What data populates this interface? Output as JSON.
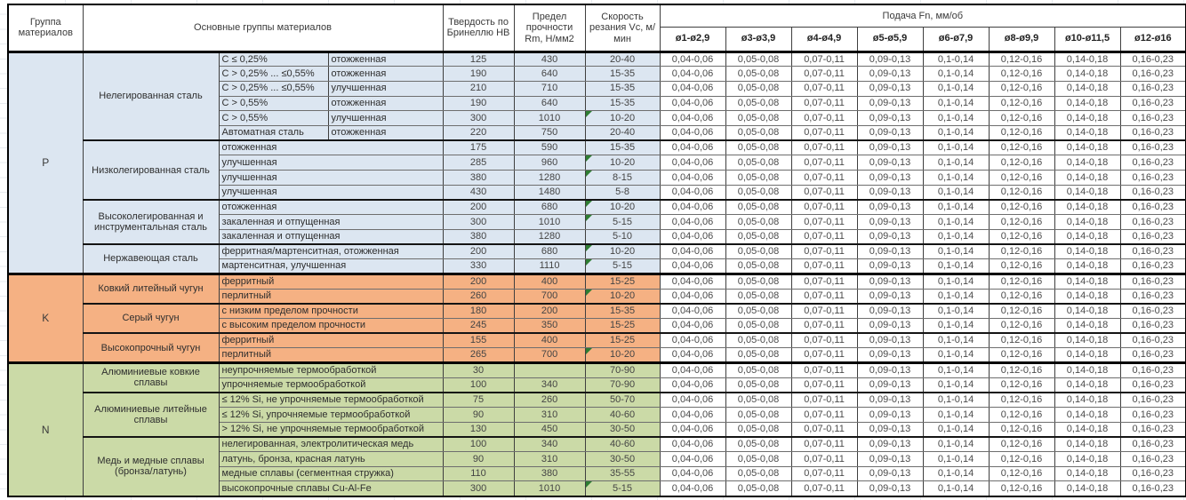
{
  "header": {
    "col_group": "Группа материалов",
    "col_main_groups": "Основные группы материалов",
    "col_hardness": "Твердость по Бринеллю HB",
    "col_strength": "Предел прочности Rm, Н/мм2",
    "col_speed": "Скорость резания Vc, м/мин",
    "feed_title": "Подача Fn, мм/об",
    "feed_columns": [
      "ø1-ø2,9",
      "ø3-ø3,9",
      "ø4-ø4,9",
      "ø5-ø5,9",
      "ø6-ø7,9",
      "ø8-ø9,9",
      "ø10-ø11,5",
      "ø12-ø16"
    ]
  },
  "feed_values": [
    "0,04-0,06",
    "0,05-0,08",
    "0,07-0,11",
    "0,09-0,13",
    "0,1-0,14",
    "0,12-0,16",
    "0,14-0,18",
    "0,16-0,23"
  ],
  "colors": {
    "group_p": "#dce6f1",
    "group_k": "#f5b183",
    "group_n": "#cbdaa7",
    "comment_marker": "#2e7d32"
  },
  "groups": [
    {
      "code": "P",
      "color_key": "group_p",
      "subgroups": [
        {
          "name": "Нелегированная сталь",
          "rows": [
            {
              "detail": "C ≤ 0,25%",
              "state": "отожженная",
              "hb": "125",
              "rm": "430",
              "vc": "20-40",
              "marker": false
            },
            {
              "detail": "C > 0,25% ... ≤0,55%",
              "state": "отожженная",
              "hb": "190",
              "rm": "640",
              "vc": "15-35",
              "marker": false
            },
            {
              "detail": "C > 0,25% ... ≤0,55%",
              "state": "улучшенная",
              "hb": "210",
              "rm": "710",
              "vc": "15-35",
              "marker": false
            },
            {
              "detail": "C > 0,55%",
              "state": "отожженная",
              "hb": "190",
              "rm": "640",
              "vc": "15-35",
              "marker": false
            },
            {
              "detail": "C > 0,55%",
              "state": "улучшенная",
              "hb": "300",
              "rm": "1010",
              "vc": "10-20",
              "marker": true
            },
            {
              "detail": "Автоматная сталь",
              "state": "отожженная",
              "hb": "220",
              "rm": "750",
              "vc": "20-40",
              "marker": false
            }
          ]
        },
        {
          "name": "Низколегированная сталь",
          "rows": [
            {
              "detail": "отожженная",
              "hb": "175",
              "rm": "590",
              "vc": "15-35",
              "marker": false
            },
            {
              "detail": "улучшенная",
              "hb": "285",
              "rm": "960",
              "vc": "10-20",
              "marker": true
            },
            {
              "detail": "улучшенная",
              "hb": "380",
              "rm": "1280",
              "vc": "8-15",
              "marker": true
            },
            {
              "detail": "улучшенная",
              "hb": "430",
              "rm": "1480",
              "vc": "5-8",
              "marker": false
            }
          ]
        },
        {
          "name": "Высоколегированная и инструментальная сталь",
          "rows": [
            {
              "detail": "отожженная",
              "hb": "200",
              "rm": "680",
              "vc": "10-20",
              "marker": true
            },
            {
              "detail": "закаленная и отпущенная",
              "hb": "300",
              "rm": "1010",
              "vc": "5-15",
              "marker": true
            },
            {
              "detail": "закаленная и отпущенная",
              "hb": "380",
              "rm": "1280",
              "vc": "5-10",
              "marker": false
            }
          ]
        },
        {
          "name": "Нержавеющая сталь",
          "rows": [
            {
              "detail": "ферритная/мартенситная, отожженная",
              "hb": "200",
              "rm": "680",
              "vc": "10-20",
              "marker": true
            },
            {
              "detail": "мартенситная, улучшенная",
              "hb": "330",
              "rm": "1110",
              "vc": "5-15",
              "marker": true
            }
          ]
        }
      ]
    },
    {
      "code": "K",
      "color_key": "group_k",
      "subgroups": [
        {
          "name": "Ковкий литейный чугун",
          "rows": [
            {
              "detail": "ферритный",
              "hb": "200",
              "rm": "400",
              "vc": "15-25",
              "marker": false
            },
            {
              "detail": "перлитный",
              "hb": "260",
              "rm": "700",
              "vc": "10-20",
              "marker": true
            }
          ]
        },
        {
          "name": "Серый чугун",
          "rows": [
            {
              "detail": "с низким пределом прочности",
              "hb": "180",
              "rm": "200",
              "vc": "15-35",
              "marker": false
            },
            {
              "detail": "с высоким пределом прочности",
              "hb": "245",
              "rm": "350",
              "vc": "15-25",
              "marker": false
            }
          ]
        },
        {
          "name": "Высокопрочный чугун",
          "rows": [
            {
              "detail": "ферритный",
              "hb": "155",
              "rm": "400",
              "vc": "15-25",
              "marker": false
            },
            {
              "detail": "перлитный",
              "hb": "265",
              "rm": "700",
              "vc": "10-20",
              "marker": true
            }
          ]
        }
      ]
    },
    {
      "code": "N",
      "color_key": "group_n",
      "subgroups": [
        {
          "name": "Алюминиевые ковкие сплавы",
          "rows": [
            {
              "detail": "неупрочняемые термообработкой",
              "hb": "30",
              "rm": "",
              "vc": "70-90",
              "marker": false
            },
            {
              "detail": "упрочняемые термообработкой",
              "hb": "100",
              "rm": "340",
              "vc": "70-90",
              "marker": false
            }
          ]
        },
        {
          "name": "Алюминиевые литейные сплавы",
          "rows": [
            {
              "detail": "≤ 12% Si, не упрочняемые термообработкой",
              "hb": "75",
              "rm": "260",
              "vc": "50-70",
              "marker": false
            },
            {
              "detail": "≤ 12% Si, упрочняемые термообработкой",
              "hb": "90",
              "rm": "310",
              "vc": "40-60",
              "marker": false
            },
            {
              "detail": "> 12% Si, не упрочняемые термообработкой",
              "hb": "130",
              "rm": "450",
              "vc": "30-50",
              "marker": false
            }
          ]
        },
        {
          "name": "Медь и медные сплавы (бронза/латунь)",
          "rows": [
            {
              "detail": "нелегированная, электролитическая медь",
              "hb": "100",
              "rm": "340",
              "vc": "40-60",
              "marker": false
            },
            {
              "detail": "латунь, бронза, красная латунь",
              "hb": "90",
              "rm": "310",
              "vc": "30-50",
              "marker": false
            },
            {
              "detail": "медные сплавы (сегментная стружка)",
              "hb": "110",
              "rm": "380",
              "vc": "35-55",
              "marker": false
            },
            {
              "detail": "высокопрочные сплавы Cu-Al-Fe",
              "hb": "300",
              "rm": "1010",
              "vc": "5-15",
              "marker": true
            }
          ]
        }
      ]
    }
  ]
}
